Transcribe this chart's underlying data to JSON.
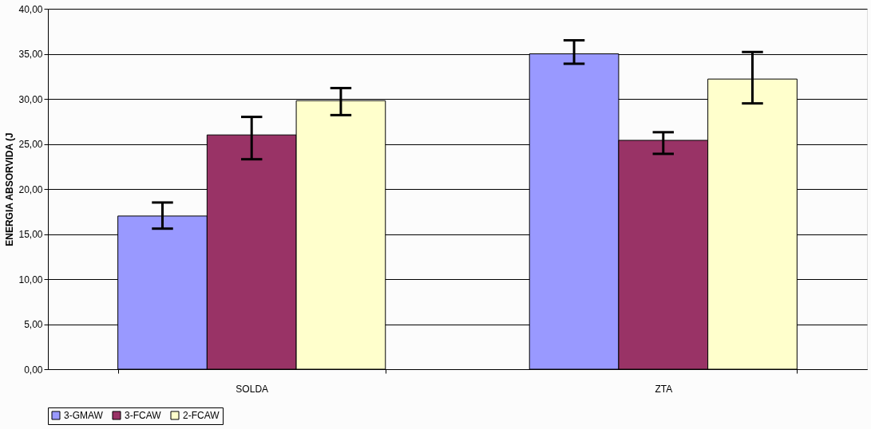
{
  "chart_data": {
    "type": "bar",
    "ylabel": "ENERGIA ABSORVIDA (J",
    "categories": [
      "SOLDA",
      "ZTA"
    ],
    "series": [
      {
        "name": "3-GMAW",
        "color": "#9999ff",
        "values": [
          17.0,
          35.0
        ],
        "errors": [
          [
            15.6,
            18.5
          ],
          [
            33.9,
            36.5
          ]
        ]
      },
      {
        "name": "3-FCAW",
        "color": "#993366",
        "values": [
          26.0,
          25.4
        ],
        "errors": [
          [
            23.3,
            28.0
          ],
          [
            23.9,
            26.3
          ]
        ]
      },
      {
        "name": "2-FCAW",
        "color": "#ffffcc",
        "values": [
          29.8,
          32.2
        ],
        "errors": [
          [
            28.2,
            31.2
          ],
          [
            29.5,
            35.2
          ]
        ]
      }
    ],
    "ylim": [
      0,
      40
    ],
    "yticks": [
      {
        "value": 0,
        "label": "0,00"
      },
      {
        "value": 5,
        "label": "5,00"
      },
      {
        "value": 10,
        "label": "10,00"
      },
      {
        "value": 15,
        "label": "15,00"
      },
      {
        "value": 20,
        "label": "20,00"
      },
      {
        "value": 25,
        "label": "25,00"
      },
      {
        "value": 30,
        "label": "30,00"
      },
      {
        "value": 35,
        "label": "35,00"
      },
      {
        "value": 40,
        "label": "40,00"
      }
    ],
    "grid": "y",
    "legend": "bottom"
  }
}
